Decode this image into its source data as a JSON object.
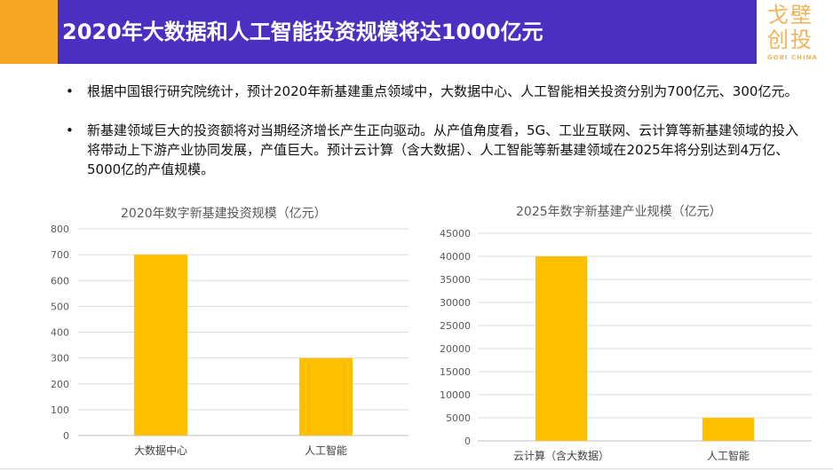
{
  "header": {
    "title": "2020年大数据和人工智能投资规模将达1000亿元",
    "logo_line1": "戈壁",
    "logo_line2": "创投",
    "logo_sub": "GOBI CHINA"
  },
  "bullets": [
    "根据中国银行研究院统计，预计2020年新基建重点领域中，大数据中心、人工智能相关投资分别为700亿元、300亿元。",
    "新基建领域巨大的投资额将对当期经济增长产生正向驱动。从产值角度看，5G、工业互联网、云计算等新基建领域的投入将带动上下游产业协同发展，产值巨大。预计云计算（含大数据）、人工智能等新基建领域在2025年将分别达到4万亿、5000亿的产值规模。"
  ],
  "colors": {
    "bar": "#ffc000",
    "title_bg": "#4b2fc0",
    "accent": "#f5a623"
  },
  "chart_data": [
    {
      "type": "bar",
      "title": "2020年数字新基建投资规模（亿元）",
      "categories": [
        "大数据中心",
        "人工智能"
      ],
      "values": [
        700,
        300
      ],
      "ylim": [
        0,
        800
      ],
      "yticks": [
        0,
        100,
        200,
        300,
        400,
        500,
        600,
        700,
        800
      ],
      "grid": true
    },
    {
      "type": "bar",
      "title": "2025年数字新基建产业规模（亿元）",
      "categories": [
        "云计算（含大数据）",
        "人工智能"
      ],
      "values": [
        40000,
        5000
      ],
      "ylim": [
        0,
        45000
      ],
      "yticks": [
        0,
        5000,
        10000,
        15000,
        20000,
        25000,
        30000,
        35000,
        40000,
        45000
      ],
      "grid": true
    }
  ]
}
